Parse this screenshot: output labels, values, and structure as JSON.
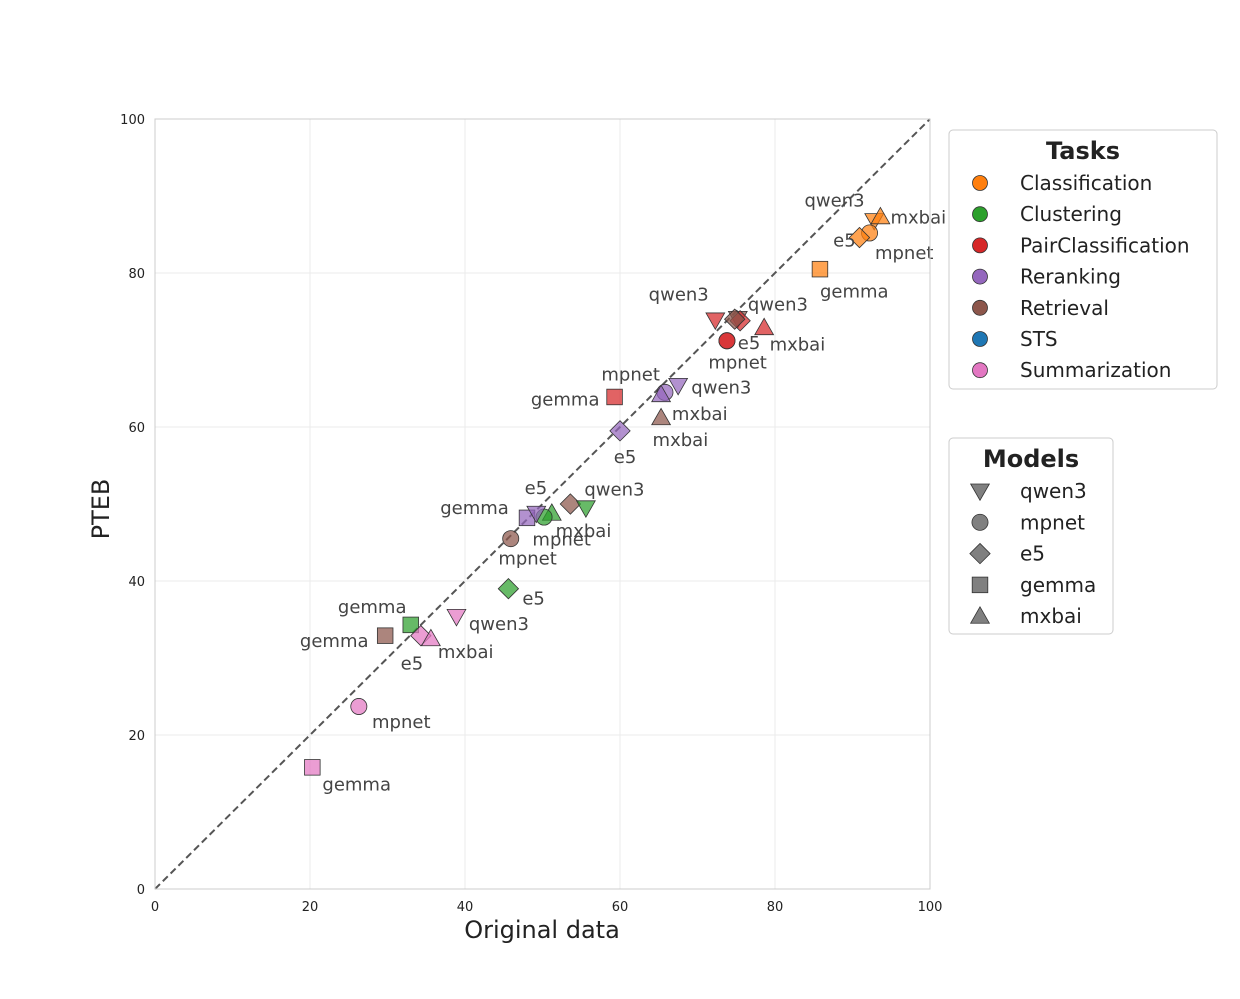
{
  "chart_data": {
    "type": "scatter",
    "xlabel": "Original data",
    "ylabel": "PTEB",
    "xlim": [
      0,
      100
    ],
    "ylim": [
      0,
      100
    ],
    "xticks": [
      "0",
      "20",
      "40",
      "60",
      "80",
      "100"
    ],
    "yticks": [
      "0",
      "20",
      "40",
      "60",
      "80",
      "100"
    ],
    "grid": true,
    "reference_line": "y = x (dashed)",
    "tasks_legend": {
      "title": "Tasks",
      "items": [
        {
          "label": "Classification",
          "color": "#ff7f0e"
        },
        {
          "label": "Clustering",
          "color": "#2ca02c"
        },
        {
          "label": "PairClassification",
          "color": "#d62728"
        },
        {
          "label": "Reranking",
          "color": "#9467bd"
        },
        {
          "label": "Retrieval",
          "color": "#8c564b"
        },
        {
          "label": "STS",
          "color": "#1f77b4"
        },
        {
          "label": "Summarization",
          "color": "#e377c2"
        }
      ]
    },
    "models_legend": {
      "title": "Models",
      "items": [
        {
          "label": "qwen3",
          "marker": "triangle-down"
        },
        {
          "label": "mpnet",
          "marker": "circle"
        },
        {
          "label": "e5",
          "marker": "diamond"
        },
        {
          "label": "gemma",
          "marker": "square"
        },
        {
          "label": "mxbai",
          "marker": "triangle-up"
        }
      ]
    },
    "points": [
      {
        "task": "Classification",
        "model": "qwen3",
        "x": 92.8,
        "y": 86.8,
        "label": "qwen3",
        "ldx": -9.0,
        "ldy": 2.6
      },
      {
        "task": "Classification",
        "model": "mxbai",
        "x": 93.6,
        "y": 87.3,
        "label": "mxbai",
        "ldx": 1.3,
        "ldy": -0.1
      },
      {
        "task": "Classification",
        "model": "mpnet",
        "x": 92.2,
        "y": 85.2,
        "label": "mpnet",
        "ldx": 0.7,
        "ldy": -2.6
      },
      {
        "task": "Classification",
        "model": "e5",
        "x": 90.9,
        "y": 84.6,
        "label": "e5",
        "ldx": -3.4,
        "ldy": -0.4
      },
      {
        "task": "Classification",
        "model": "gemma",
        "x": 85.8,
        "y": 80.5,
        "label": "gemma",
        "ldx": 0.0,
        "ldy": -2.9
      },
      {
        "task": "PairClassification",
        "model": "qwen3",
        "x": 72.3,
        "y": 73.9,
        "label": "qwen3",
        "ldx": -8.6,
        "ldy": 3.3
      },
      {
        "task": "Retrieval",
        "model": "qwen3",
        "x": 75.2,
        "y": 74.1,
        "label": "qwen3",
        "ldx": 1.3,
        "ldy": 1.8
      },
      {
        "task": "PairClassification",
        "model": "e5",
        "x": 75.5,
        "y": 73.8,
        "label": "",
        "ldx": 0,
        "ldy": 0
      },
      {
        "task": "Retrieval",
        "model": "e5",
        "x": 74.8,
        "y": 74.0,
        "label": "",
        "ldx": 0,
        "ldy": 0
      },
      {
        "task": "PairClassification",
        "model": "mxbai",
        "x": 78.6,
        "y": 72.9,
        "label": "mxbai",
        "ldx": 0.7,
        "ldy": -2.2
      },
      {
        "task": "PairClassification",
        "model": "mpnet",
        "x": 73.8,
        "y": 71.2,
        "label": "e5",
        "ldx": 1.4,
        "ldy": -0.3
      },
      {
        "task": "PairClassification",
        "model": "mpnet",
        "x": 73.8,
        "y": 71.2,
        "label": "mpnet",
        "ldx": -2.4,
        "ldy": -2.8
      },
      {
        "task": "PairClassification",
        "model": "gemma",
        "x": 59.3,
        "y": 63.9,
        "label": "gemma",
        "ldx": -10.8,
        "ldy": -0.3
      },
      {
        "task": "Reranking",
        "model": "mpnet",
        "x": 65.8,
        "y": 64.5,
        "label": "mpnet",
        "ldx": -8.2,
        "ldy": 2.3
      },
      {
        "task": "Reranking",
        "model": "qwen3",
        "x": 67.5,
        "y": 65.4,
        "label": "qwen3",
        "ldx": 1.7,
        "ldy": -0.3
      },
      {
        "task": "Reranking",
        "model": "mxbai",
        "x": 65.3,
        "y": 64.2,
        "label": "mxbai",
        "ldx": 1.4,
        "ldy": -2.5
      },
      {
        "task": "Retrieval",
        "model": "mxbai",
        "x": 65.3,
        "y": 61.2,
        "label": "mxbai",
        "ldx": -1.1,
        "ldy": -2.9
      },
      {
        "task": "Reranking",
        "model": "e5",
        "x": 60.0,
        "y": 59.5,
        "label": "e5",
        "ldx": -0.8,
        "ldy": -3.4
      },
      {
        "task": "Retrieval",
        "model": "e5",
        "x": 53.6,
        "y": 50.0,
        "label": "qwen3",
        "ldx": 1.8,
        "ldy": 1.9
      },
      {
        "task": "Clustering",
        "model": "qwen3",
        "x": 55.6,
        "y": 49.5,
        "label": "",
        "ldx": 0,
        "ldy": 0
      },
      {
        "task": "Clustering",
        "model": "mxbai",
        "x": 51.2,
        "y": 48.8,
        "label": "mxbai",
        "ldx": 0.5,
        "ldy": -2.3
      },
      {
        "task": "Clustering",
        "model": "mpnet",
        "x": 50.2,
        "y": 48.3,
        "label": "mpnet",
        "ldx": -1.5,
        "ldy": -2.9
      },
      {
        "task": "Reranking",
        "model": "gemma",
        "x": 48.0,
        "y": 48.2,
        "label": "gemma",
        "ldx": -11.2,
        "ldy": 1.3
      },
      {
        "task": "Reranking",
        "model": "qwen3",
        "x": 49.2,
        "y": 48.8,
        "label": "e5",
        "ldx": -1.5,
        "ldy": 3.3
      },
      {
        "task": "Retrieval",
        "model": "mpnet",
        "x": 45.9,
        "y": 45.5,
        "label": "mpnet",
        "ldx": -1.6,
        "ldy": -2.6
      },
      {
        "task": "Clustering",
        "model": "e5",
        "x": 45.6,
        "y": 39.0,
        "label": "e5",
        "ldx": 1.8,
        "ldy": -1.3
      },
      {
        "task": "Summarization",
        "model": "qwen3",
        "x": 38.9,
        "y": 35.4,
        "label": "qwen3",
        "ldx": 1.6,
        "ldy": -1.0
      },
      {
        "task": "Clustering",
        "model": "gemma",
        "x": 33.0,
        "y": 34.3,
        "label": "gemma",
        "ldx": -9.4,
        "ldy": 2.3
      },
      {
        "task": "Summarization",
        "model": "e5",
        "x": 34.3,
        "y": 32.9,
        "label": "e5",
        "ldx": -2.6,
        "ldy": -3.6
      },
      {
        "task": "Summarization",
        "model": "mxbai",
        "x": 35.6,
        "y": 32.5,
        "label": "mxbai",
        "ldx": 0.9,
        "ldy": -1.7
      },
      {
        "task": "Retrieval",
        "model": "gemma",
        "x": 29.7,
        "y": 32.9,
        "label": "gemma",
        "ldx": -11.0,
        "ldy": -0.7
      },
      {
        "task": "Summarization",
        "model": "mpnet",
        "x": 26.3,
        "y": 23.7,
        "label": "mpnet",
        "ldx": 1.7,
        "ldy": -2.0
      },
      {
        "task": "Summarization",
        "model": "gemma",
        "x": 20.3,
        "y": 15.8,
        "label": "gemma",
        "ldx": 1.3,
        "ldy": -2.2
      }
    ]
  }
}
